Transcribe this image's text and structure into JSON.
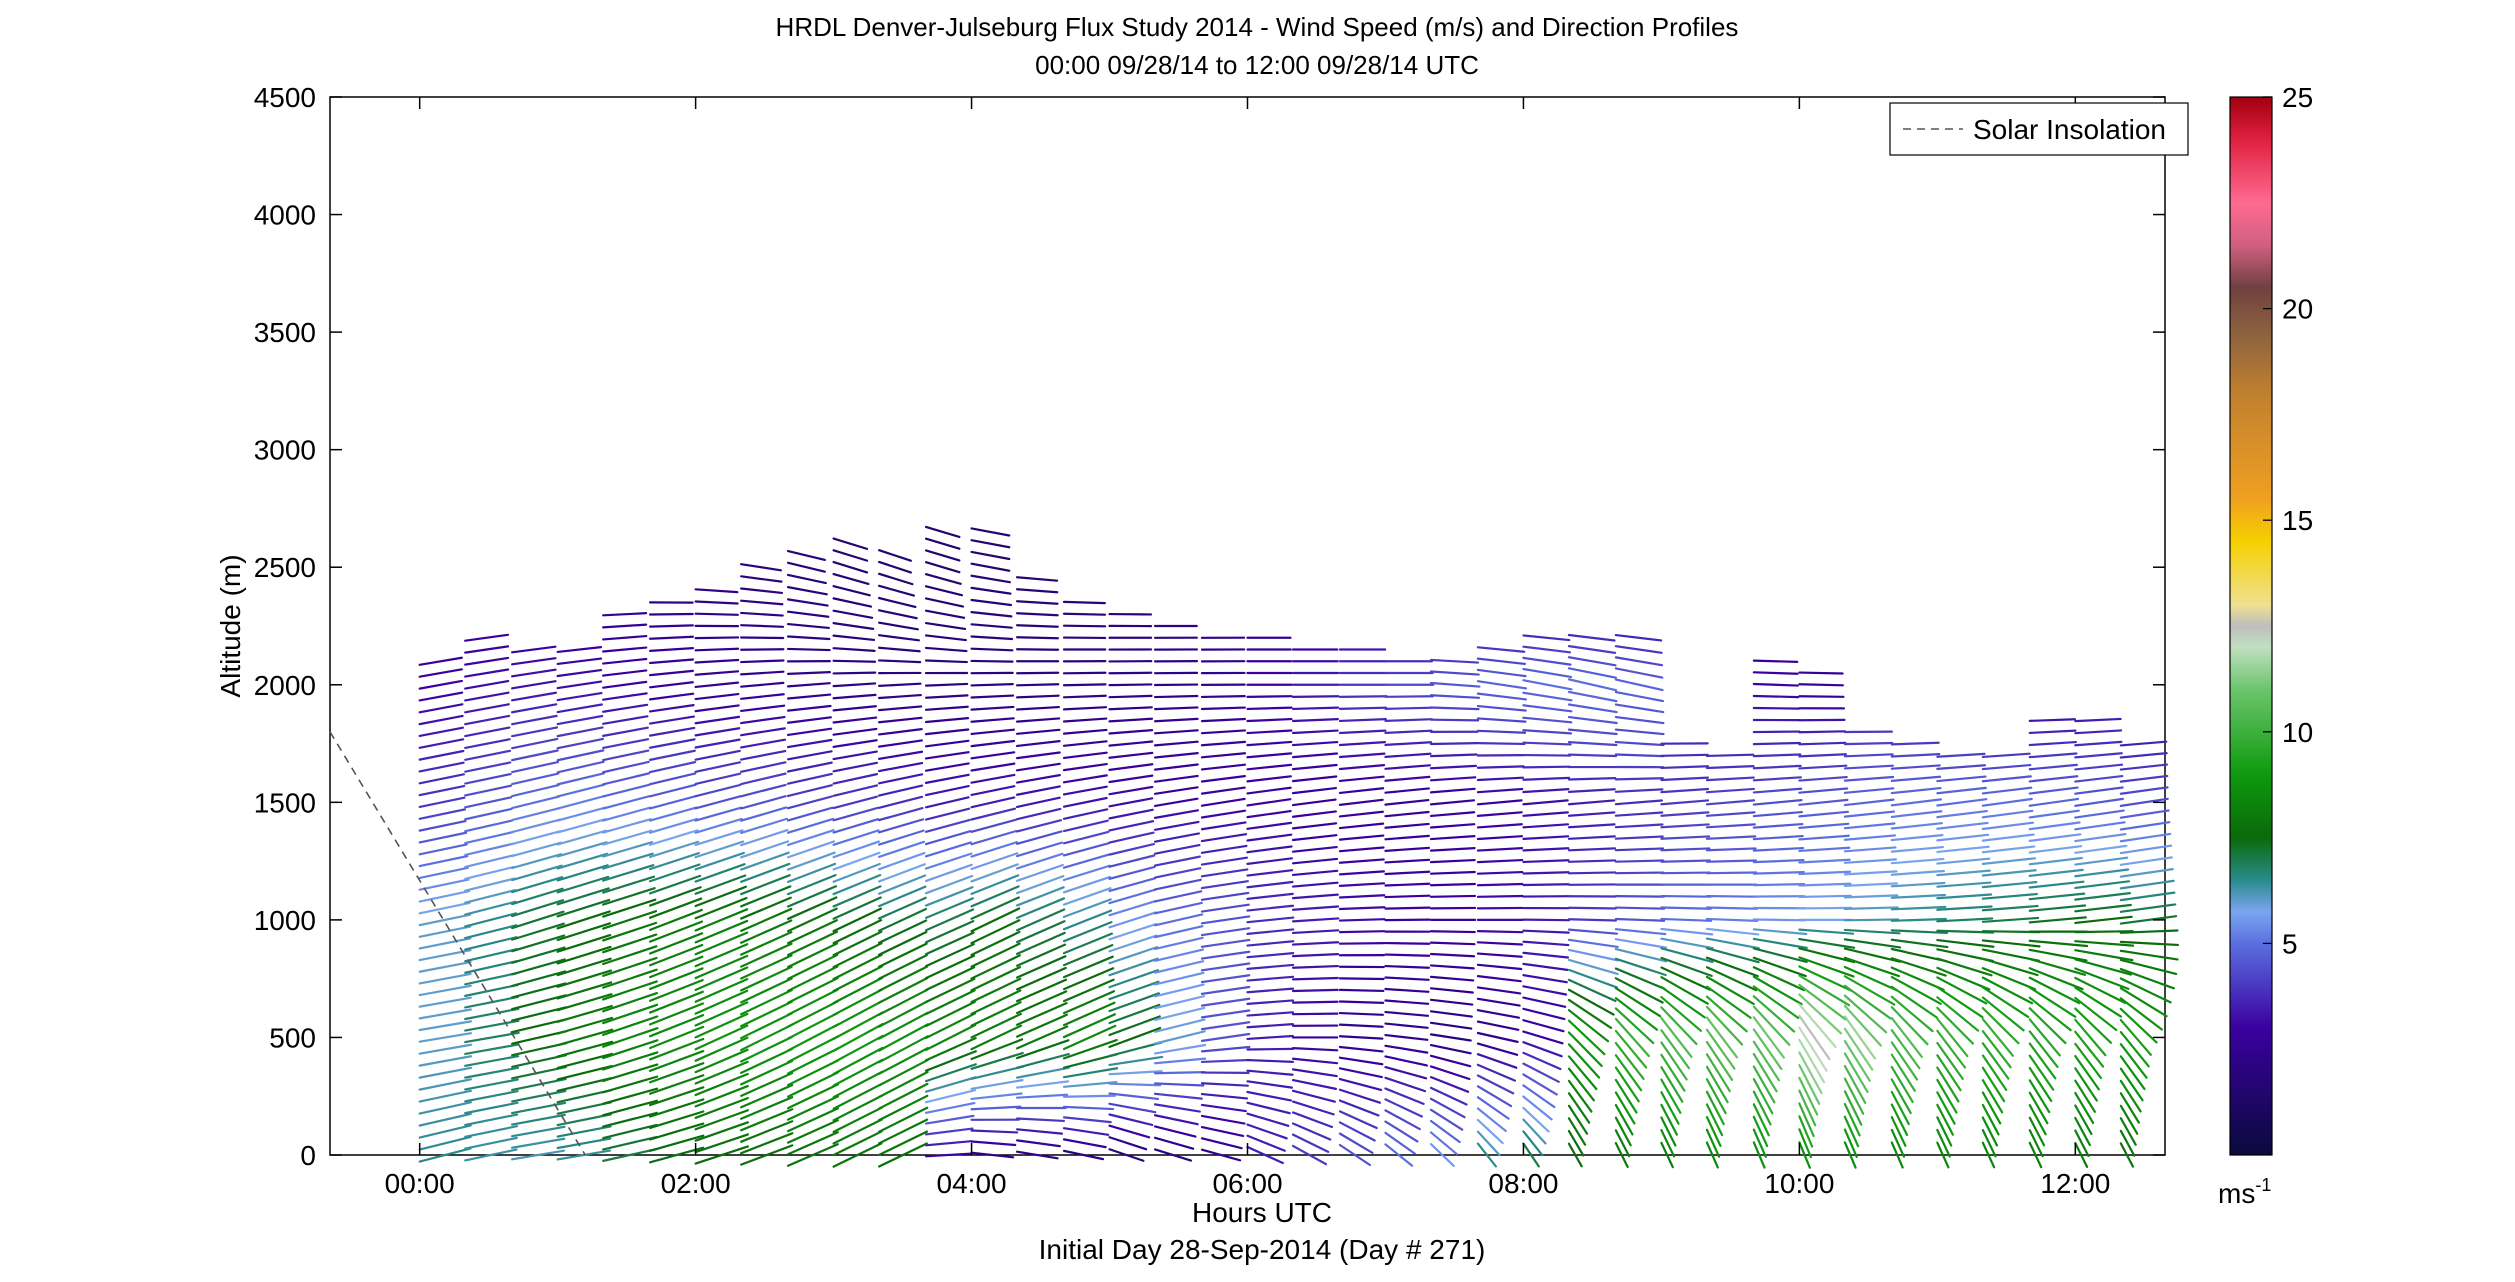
{
  "chart_data": {
    "type": "wind-barb-profile",
    "title": "HRDL Denver-Julseburg Flux Study 2014 - Wind Speed (m/s) and Direction Profiles",
    "subtitle": "00:00 09/28/14 to 12:00 09/28/14  UTC",
    "xlabel": "Hours UTC",
    "xlabel2": "Initial Day 28-Sep-2014 (Day # 271)",
    "ylabel": "Altitude (m)",
    "xlim": [
      -0.65,
      12.65
    ],
    "ylim": [
      0,
      4500
    ],
    "xticks": [
      0,
      2,
      4,
      6,
      8,
      10,
      12
    ],
    "xtick_labels": [
      "00:00",
      "02:00",
      "04:00",
      "06:00",
      "08:00",
      "10:00",
      "12:00"
    ],
    "yticks": [
      0,
      500,
      1000,
      1500,
      2000,
      2500,
      3000,
      3500,
      4000,
      4500
    ],
    "ytick_labels": [
      "0",
      "500",
      "1000",
      "1500",
      "2000",
      "2500",
      "3000",
      "3500",
      "4000",
      "4500"
    ],
    "legend": {
      "position": "top-right",
      "entries": [
        {
          "label": "Solar Insolation",
          "style": "dashed",
          "color": "#555555"
        }
      ]
    },
    "solar_insolation": {
      "x": [
        -0.65,
        1.2
      ],
      "y": [
        1800,
        0
      ]
    },
    "colorbar": {
      "min": 0,
      "max": 25,
      "ticks": [
        5,
        10,
        15,
        20,
        25
      ],
      "tick_labels": [
        "5",
        "10",
        "15",
        "20",
        "25"
      ],
      "unit": "ms-1",
      "colors": [
        "#0a0a3c",
        "#3a00a0",
        "#5b6fe0",
        "#7aa6f0",
        "#2a8a8a",
        "#0a6a0a",
        "#0e9a0e",
        "#6cc46c",
        "#c0e0c0",
        "#bdbdbd",
        "#f0e090",
        "#f5d000",
        "#f0a020",
        "#c08030",
        "#8a6040",
        "#704040",
        "#d06080",
        "#ff6a90",
        "#e02040",
        "#a00010"
      ],
      "color_stops": [
        0,
        0.12,
        0.2,
        0.23,
        0.26,
        0.3,
        0.36,
        0.44,
        0.48,
        0.5,
        0.52,
        0.58,
        0.62,
        0.72,
        0.78,
        0.82,
        0.86,
        0.9,
        0.96,
        1.0
      ]
    },
    "profiles": {
      "times_hours": [
        0.0,
        0.33,
        0.67,
        1.0,
        1.33,
        1.67,
        2.0,
        2.33,
        2.67,
        3.0,
        3.33,
        3.67,
        4.0,
        4.33,
        4.67,
        5.0,
        5.33,
        5.67,
        6.0,
        6.33,
        6.67,
        7.0,
        7.33,
        7.67,
        8.0,
        8.33,
        8.67,
        9.0,
        9.33,
        9.67,
        10.0,
        10.33,
        10.67,
        11.0,
        11.33,
        11.67,
        12.0,
        12.33
      ],
      "top_altitude_m": [
        2100,
        2220,
        2180,
        2160,
        2300,
        2380,
        2420,
        2500,
        2550,
        2600,
        2580,
        2650,
        2680,
        2450,
        2350,
        2300,
        2250,
        2230,
        2200,
        2180,
        2150,
        2120,
        2130,
        2180,
        2220,
        2230,
        2200,
        1750,
        1700,
        2130,
        2080,
        1800,
        1750,
        1720,
        1700,
        1870,
        1850,
        1750
      ],
      "altitude_step_m": 50,
      "speed_ms": [
        {
          "alt": 0,
          "v": [
            6.5,
            6.3,
            6.2,
            6.4,
            7.0,
            7.4,
            7.6,
            7.7,
            7.8,
            7.8,
            7.7,
            3.0,
            2.4,
            2.3,
            2.2,
            2.0,
            2.2,
            2.5,
            3.5,
            4.0,
            4.5,
            5.0,
            5.5,
            6.5,
            7.0,
            7.5,
            8.0,
            8.2,
            8.5,
            8.6,
            8.7,
            8.6,
            8.5,
            8.4,
            8.3,
            8.2,
            8.0,
            7.8
          ]
        },
        {
          "alt": 500,
          "v": [
            6.0,
            6.8,
            7.5,
            8.0,
            8.4,
            8.6,
            8.8,
            8.9,
            9.0,
            9.0,
            8.8,
            8.5,
            8.2,
            8.0,
            8.6,
            7.5,
            6.0,
            4.5,
            3.5,
            3.0,
            2.5,
            2.5,
            2.0,
            2.5,
            3.0,
            9.0,
            10.0,
            10.5,
            10.8,
            11.0,
            12.5,
            11.5,
            10.5,
            10.0,
            9.8,
            9.6,
            9.4,
            9.2
          ]
        },
        {
          "alt": 1000,
          "v": [
            6.0,
            6.5,
            7.2,
            7.5,
            7.8,
            8.0,
            8.2,
            8.0,
            7.8,
            7.5,
            7.2,
            7.0,
            7.6,
            7.0,
            6.5,
            5.5,
            5.0,
            4.5,
            3.8,
            3.5,
            3.2,
            3.0,
            3.0,
            3.2,
            3.5,
            4.0,
            4.5,
            5.0,
            5.2,
            5.5,
            5.8,
            6.2,
            6.5,
            6.8,
            7.0,
            7.3,
            7.5,
            7.2
          ]
        },
        {
          "alt": 1500,
          "v": [
            4.0,
            4.5,
            5.0,
            5.2,
            5.0,
            4.8,
            4.5,
            4.5,
            4.2,
            4.0,
            3.8,
            3.5,
            3.5,
            3.4,
            3.3,
            3.2,
            3.0,
            3.0,
            3.0,
            2.8,
            2.8,
            2.8,
            2.8,
            3.0,
            3.2,
            3.5,
            3.8,
            4.0,
            4.2,
            4.4,
            4.6,
            4.8,
            5.0,
            5.0,
            5.0,
            4.8,
            4.6,
            4.4
          ]
        },
        {
          "alt": 2000,
          "v": [
            3.0,
            3.2,
            3.3,
            3.2,
            3.0,
            2.8,
            2.6,
            2.5,
            2.3,
            2.2,
            2.1,
            2.0,
            2.0,
            2.0,
            2.1,
            2.2,
            2.3,
            2.5,
            3.0,
            3.5,
            4.0,
            4.3,
            4.6,
            4.8,
            5.0,
            5.0,
            4.8,
            3.5,
            3.2,
            3.0,
            2.8,
            3.5,
            3.0,
            2.8,
            2.6,
            2.8,
            3.0,
            2.8
          ]
        },
        {
          "alt": 2500,
          "v": [
            2.5,
            2.5,
            2.5,
            2.5,
            2.4,
            2.3,
            2.2,
            2.0,
            1.8,
            1.6,
            1.5,
            1.5,
            1.6,
            1.7,
            1.8,
            2.0,
            2.0,
            2.0,
            2.0,
            2.0,
            2.0,
            2.0,
            2.0,
            2.0,
            2.0,
            2.0,
            2.0,
            2.0,
            2.0,
            2.0,
            2.0,
            2.0,
            2.0,
            2.0,
            2.0,
            2.0,
            2.0,
            2.0
          ]
        }
      ],
      "direction_deg": [
        {
          "alt": 0,
          "v": [
            300,
            295,
            290,
            290,
            295,
            300,
            305,
            310,
            315,
            320,
            320,
            280,
            250,
            240,
            230,
            200,
            210,
            220,
            200,
            190,
            180,
            170,
            160,
            150,
            145,
            140,
            140,
            140,
            140,
            140,
            140,
            140,
            140,
            140,
            140,
            140,
            140,
            140
          ]
        },
        {
          "alt": 500,
          "v": [
            290,
            290,
            295,
            300,
            305,
            310,
            315,
            318,
            320,
            322,
            322,
            320,
            318,
            315,
            315,
            310,
            300,
            290,
            280,
            270,
            260,
            250,
            240,
            230,
            220,
            190,
            185,
            180,
            180,
            180,
            180,
            180,
            180,
            180,
            180,
            180,
            180,
            180
          ]
        },
        {
          "alt": 1000,
          "v": [
            295,
            300,
            305,
            305,
            305,
            310,
            312,
            315,
            318,
            320,
            320,
            318,
            320,
            318,
            315,
            310,
            300,
            290,
            285,
            280,
            275,
            272,
            270,
            270,
            268,
            266,
            265,
            265,
            265,
            268,
            270,
            272,
            274,
            276,
            278,
            280,
            282,
            285
          ]
        },
        {
          "alt": 1500,
          "v": [
            300,
            300,
            302,
            304,
            305,
            306,
            307,
            308,
            308,
            308,
            308,
            306,
            305,
            304,
            302,
            300,
            298,
            296,
            294,
            292,
            290,
            288,
            286,
            285,
            284,
            283,
            282,
            282,
            282,
            283,
            284,
            285,
            286,
            287,
            288,
            289,
            290,
            291
          ]
        },
        {
          "alt": 2000,
          "v": [
            300,
            298,
            296,
            294,
            292,
            290,
            288,
            286,
            284,
            282,
            280,
            278,
            276,
            275,
            274,
            273,
            272,
            271,
            270,
            270,
            270,
            270,
            260,
            250,
            245,
            240,
            240,
            260,
            262,
            264,
            266,
            262,
            264,
            266,
            268,
            270,
            272,
            274
          ]
        },
        {
          "alt": 2500,
          "v": [
            290,
            285,
            280,
            275,
            270,
            260,
            250,
            240,
            220,
            200,
            190,
            200,
            230,
            250,
            260,
            265,
            268,
            270,
            270,
            270,
            270,
            270,
            270,
            270,
            270,
            270,
            270,
            270,
            270,
            270,
            270,
            270,
            270,
            270,
            270,
            270,
            270,
            270
          ]
        }
      ]
    }
  }
}
